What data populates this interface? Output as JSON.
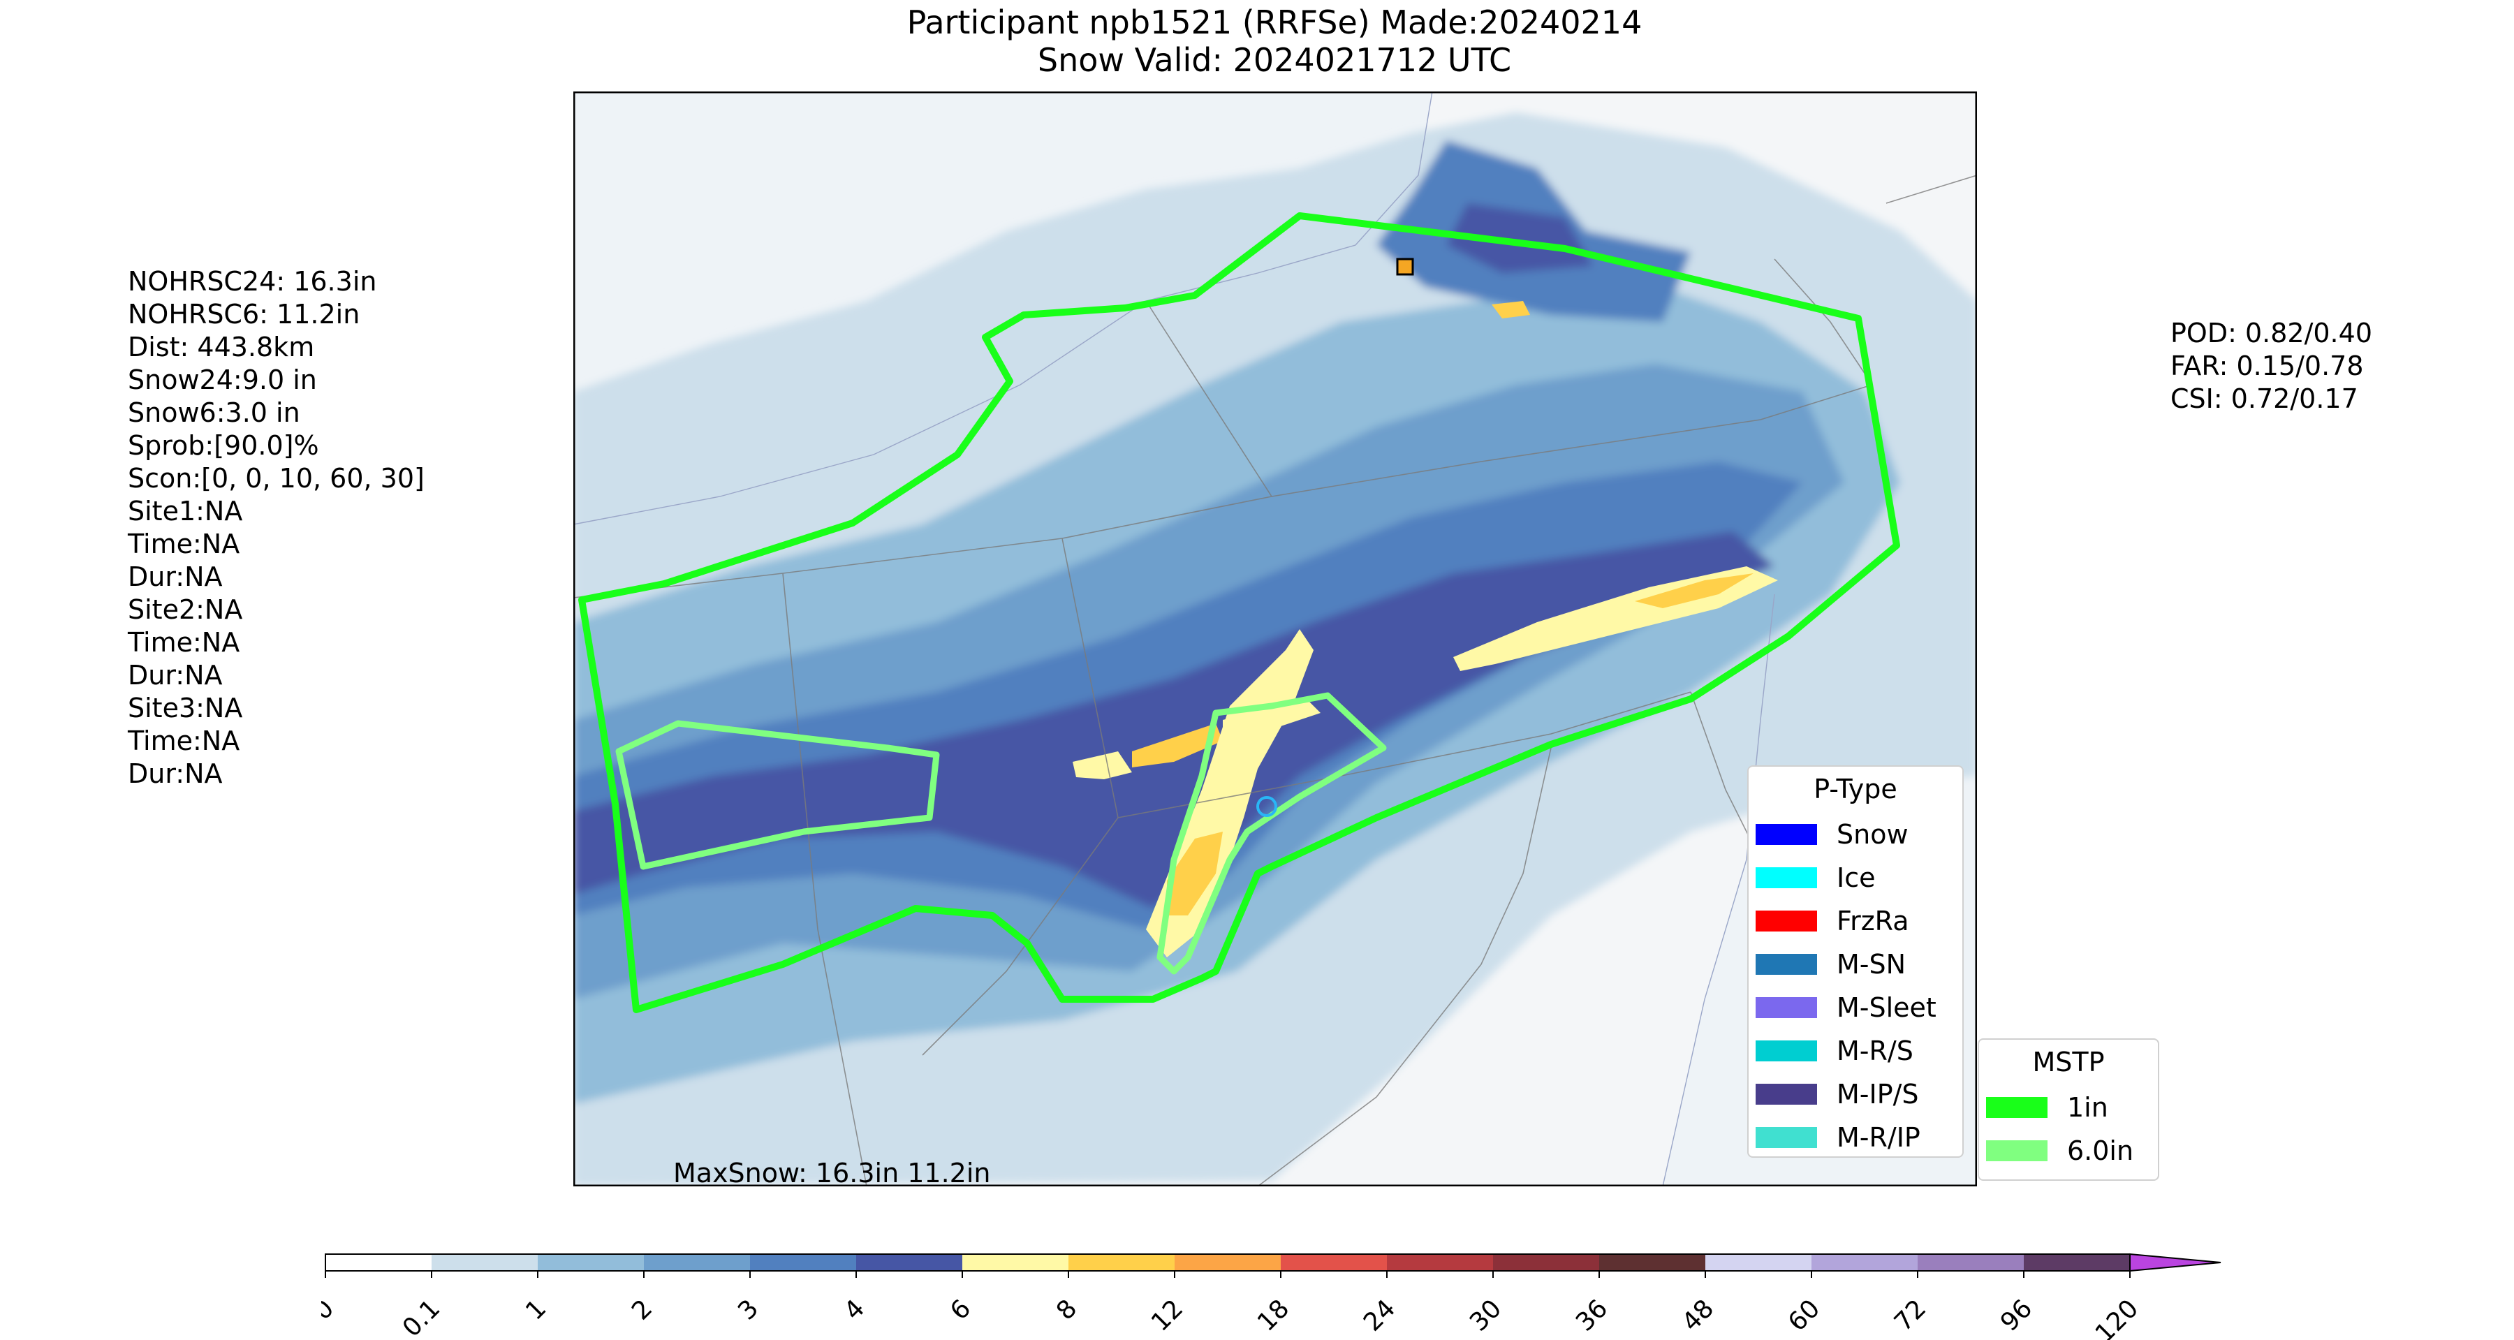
{
  "header": {
    "title_line1": "Participant npb1521 (RRFSe) Made:20240214",
    "title_line2": "Snow Valid: 2024021712 UTC"
  },
  "left_stats": [
    "NOHRSC24: 16.3in",
    "NOHRSC6: 11.2in",
    "Dist: 443.8km",
    "Snow24:9.0 in",
    "Snow6:3.0 in",
    "Sprob:[90.0]%",
    "Scon:[0, 0, 10, 60, 30]",
    "Site1:NA",
    "Time:NA",
    "Dur:NA",
    "Site2:NA",
    "Time:NA",
    "Dur:NA",
    "Site3:NA",
    "Time:NA",
    "Dur:NA"
  ],
  "right_stats": [
    "POD: 0.82/0.40",
    "FAR: 0.15/0.78",
    "CSI: 0.72/0.17"
  ],
  "map": {
    "max_snow_label": "MaxSnow: 16.3in 11.2in",
    "land_color": "#f4f6f8",
    "water_color": "#eef3f7"
  },
  "ptype_legend": {
    "title": "P-Type",
    "items": [
      {
        "label": "Snow",
        "color": "#0000ff"
      },
      {
        "label": "Ice",
        "color": "#00ffff"
      },
      {
        "label": "FrzRa",
        "color": "#ff0000"
      },
      {
        "label": "M-SN",
        "color": "#1f77b4"
      },
      {
        "label": "M-Sleet",
        "color": "#7b68ee"
      },
      {
        "label": "M-R/S",
        "color": "#00ced1"
      },
      {
        "label": "M-IP/S",
        "color": "#483d8b"
      },
      {
        "label": "M-R/IP",
        "color": "#40e0d0"
      }
    ]
  },
  "mstp_legend": {
    "title": "MSTP",
    "items": [
      {
        "label": "1in",
        "color": "#19ff19"
      },
      {
        "label": "6.0in",
        "color": "#80ff80"
      }
    ]
  },
  "colorbar": {
    "ticks": [
      "0",
      "0.1",
      "1",
      "2",
      "3",
      "4",
      "6",
      "8",
      "12",
      "18",
      "24",
      "30",
      "36",
      "48",
      "60",
      "72",
      "96",
      "120"
    ],
    "colors": [
      "#ffffff",
      "#cddfeb",
      "#92bdda",
      "#6e9fcc",
      "#5180bf",
      "#4656a5",
      "#fff9a6",
      "#ffd04a",
      "#fca546",
      "#e3524a",
      "#b53a3f",
      "#8c3039",
      "#5e3031",
      "#d4d4f1",
      "#b2a5db",
      "#9a7fbd",
      "#5d3b65"
    ],
    "extend_color": "#ba44e0"
  }
}
